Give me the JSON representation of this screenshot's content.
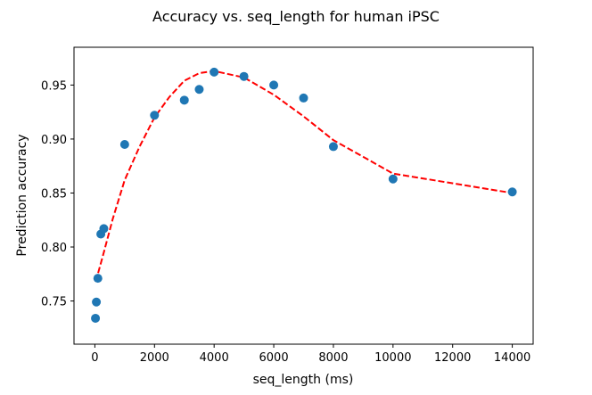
{
  "chart_data": {
    "type": "scatter",
    "title": "Accuracy vs. seq_length for human iPSC",
    "xlabel": "seq_length (ms)",
    "ylabel": "Prediction accuracy",
    "xlim": [
      -700,
      14700
    ],
    "ylim": [
      0.71,
      0.985
    ],
    "xticks": [
      0,
      2000,
      4000,
      6000,
      8000,
      10000,
      12000,
      14000
    ],
    "yticks": [
      0.75,
      0.8,
      0.85,
      0.9,
      0.95
    ],
    "xtick_labels": [
      "0",
      "2000",
      "4000",
      "6000",
      "8000",
      "10000",
      "12000",
      "14000"
    ],
    "ytick_labels": [
      "0.75",
      "0.80",
      "0.85",
      "0.90",
      "0.95"
    ],
    "grid": false,
    "series": [
      {
        "kind": "scatter",
        "color": "#1f77b4",
        "points": [
          {
            "x": 20,
            "y": 0.734
          },
          {
            "x": 50,
            "y": 0.749
          },
          {
            "x": 100,
            "y": 0.771
          },
          {
            "x": 200,
            "y": 0.812
          },
          {
            "x": 300,
            "y": 0.817
          },
          {
            "x": 1000,
            "y": 0.895
          },
          {
            "x": 2000,
            "y": 0.922
          },
          {
            "x": 3000,
            "y": 0.936
          },
          {
            "x": 3500,
            "y": 0.946
          },
          {
            "x": 4000,
            "y": 0.962
          },
          {
            "x": 5000,
            "y": 0.958
          },
          {
            "x": 6000,
            "y": 0.95
          },
          {
            "x": 7000,
            "y": 0.938
          },
          {
            "x": 8000,
            "y": 0.893
          },
          {
            "x": 10000,
            "y": 0.863
          },
          {
            "x": 14000,
            "y": 0.851
          }
        ]
      },
      {
        "kind": "line",
        "style": "dashed",
        "color": "#ff0000",
        "points": [
          {
            "x": 20,
            "y": 0.768
          },
          {
            "x": 100,
            "y": 0.775
          },
          {
            "x": 300,
            "y": 0.795
          },
          {
            "x": 600,
            "y": 0.826
          },
          {
            "x": 1000,
            "y": 0.862
          },
          {
            "x": 1500,
            "y": 0.893
          },
          {
            "x": 2000,
            "y": 0.92
          },
          {
            "x": 2500,
            "y": 0.939
          },
          {
            "x": 3000,
            "y": 0.954
          },
          {
            "x": 3500,
            "y": 0.961
          },
          {
            "x": 4000,
            "y": 0.963
          },
          {
            "x": 5000,
            "y": 0.957
          },
          {
            "x": 6000,
            "y": 0.941
          },
          {
            "x": 7000,
            "y": 0.921
          },
          {
            "x": 8000,
            "y": 0.899
          },
          {
            "x": 10000,
            "y": 0.868
          },
          {
            "x": 14000,
            "y": 0.85
          }
        ]
      }
    ]
  }
}
